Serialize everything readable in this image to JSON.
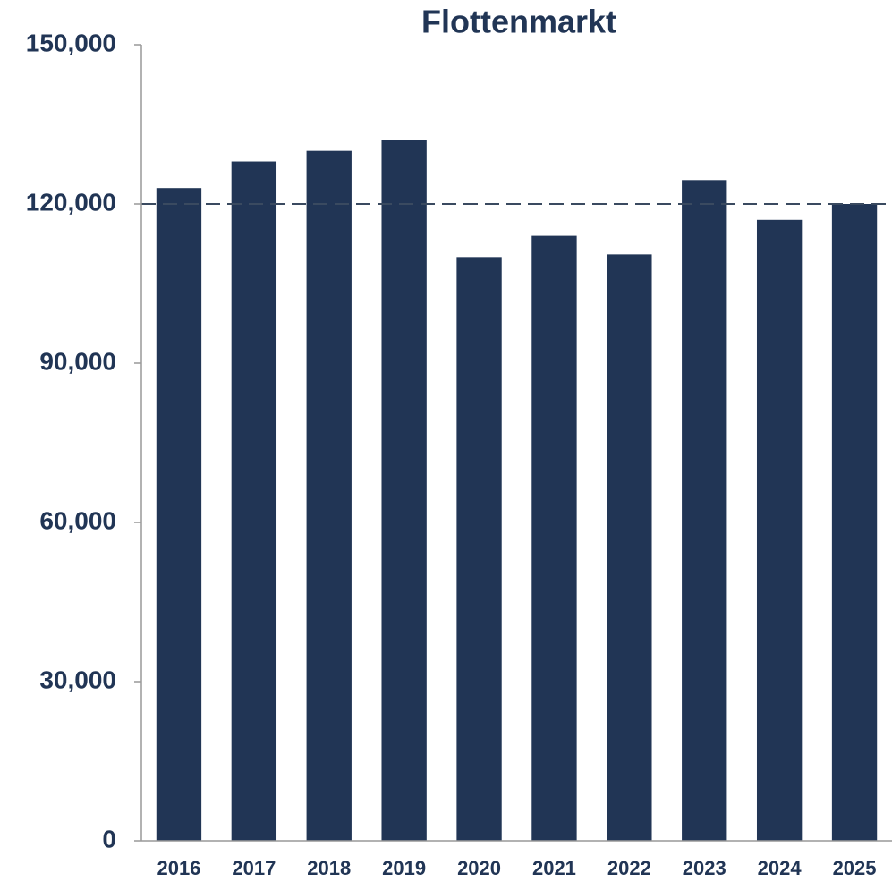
{
  "chart_data": {
    "type": "bar",
    "title": "Flottenmarkt",
    "categories": [
      "2016",
      "2017",
      "2018",
      "2019",
      "2020",
      "2021",
      "2022",
      "2023",
      "2024",
      "2025"
    ],
    "values": [
      123000,
      128000,
      130000,
      132000,
      110000,
      114000,
      110500,
      124500,
      117000,
      120000
    ],
    "color": "#213555",
    "ylim": [
      0,
      150000
    ],
    "yticks": [
      {
        "value": 0,
        "label": "0"
      },
      {
        "value": 30000,
        "label": "30,000"
      },
      {
        "value": 60000,
        "label": "60,000"
      },
      {
        "value": 90000,
        "label": "90,000"
      },
      {
        "value": 120000,
        "label": "120,000"
      },
      {
        "value": 150000,
        "label": "150,000"
      }
    ],
    "grid": false,
    "reference_line": 120000
  }
}
